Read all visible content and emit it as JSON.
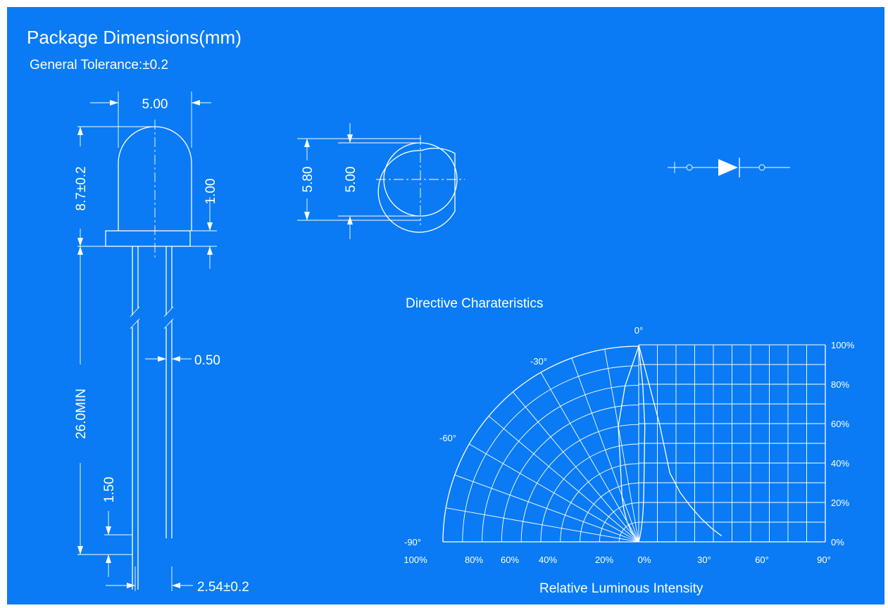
{
  "header": {
    "title": "Package Dimensions(mm)",
    "tolerance": "General Tolerance:±0.2"
  },
  "dimensions": {
    "lens_diameter": "5.00",
    "lens_height": "8.7±0.2",
    "flange_height": "1.00",
    "lead_length": "26.0MIN",
    "lead_width": "0.50",
    "lead_offset": "1.50",
    "lead_spacing": "2.54±0.2",
    "flange_diameter": "5.80",
    "top_lens_diameter": "5.00"
  },
  "chart_data": {
    "type": "polar",
    "title": "Directive Charateristics",
    "xlabel": "Relative Luminous Intensity",
    "angle_labels": [
      "0°",
      "-30°",
      "-60°",
      "-90°"
    ],
    "x_tick_labels": [
      "100%",
      "80%",
      "60%",
      "40%",
      "20%",
      "0%",
      "30°",
      "60°",
      "90°"
    ],
    "y_tick_labels": [
      "100%",
      "80%",
      "60%",
      "40%",
      "20%",
      "0%"
    ],
    "radial_range": [
      0,
      100
    ],
    "angle_range": [
      -90,
      90
    ],
    "series": [
      {
        "angles": [
          0,
          5,
          10,
          15,
          20,
          25,
          30,
          35,
          40
        ],
        "values": [
          100,
          80,
          60,
          35,
          25,
          18,
          12,
          7,
          3
        ]
      }
    ],
    "grid": true
  }
}
